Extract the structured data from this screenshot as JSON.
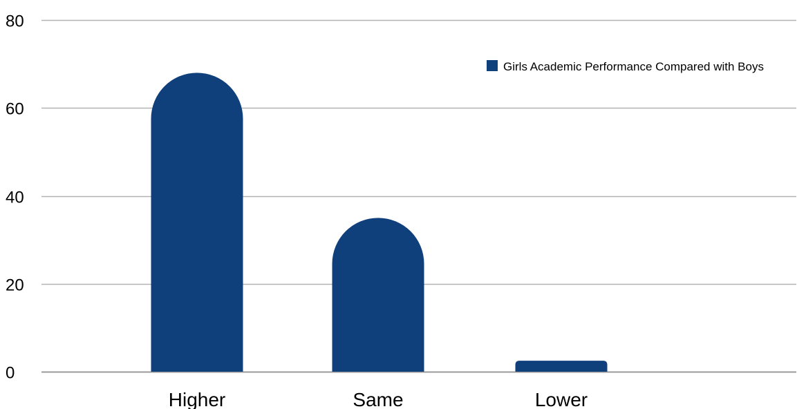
{
  "chart_data": {
    "type": "bar",
    "categories": [
      "Higher",
      "Same",
      "Lower"
    ],
    "series": [
      {
        "name": "Girls Academic Performance Compared with Boys",
        "values": [
          68,
          35,
          2.5
        ],
        "color": "#10407b"
      }
    ],
    "y_ticks": [
      "0",
      "20",
      "40",
      "60",
      "80"
    ],
    "ylim": [
      0,
      80
    ],
    "grid": true,
    "legend_position": "top-right",
    "bar_style": "rounded-top"
  }
}
